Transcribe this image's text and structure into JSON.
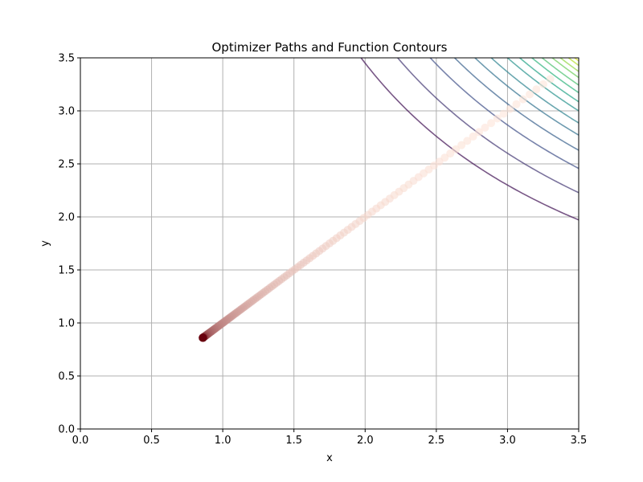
{
  "chart_data": {
    "type": "scatter",
    "title": "Optimizer Paths and Function Contours",
    "xlabel": "x",
    "ylabel": "y",
    "xlim": [
      0.0,
      3.5
    ],
    "ylim": [
      0.0,
      3.5
    ],
    "grid": true,
    "x_ticks": [
      "0.0",
      "0.5",
      "1.0",
      "1.5",
      "2.0",
      "2.5",
      "3.0",
      "3.5"
    ],
    "y_ticks": [
      "0.0",
      "0.5",
      "1.0",
      "1.5",
      "2.0",
      "2.5",
      "3.0",
      "3.5"
    ],
    "contours": {
      "function_form": "level sets of x*y (hyperbolas), upper-right corner only",
      "levels": [
        6.9,
        7.8,
        8.6,
        9.2,
        9.7,
        10.1,
        10.5,
        10.8,
        11.1,
        11.35,
        11.6,
        11.8,
        12.0,
        12.15,
        12.3
      ],
      "colors": [
        "#3e0f52",
        "#433873",
        "#3f4e87",
        "#38608c",
        "#31718e",
        "#2b818e",
        "#25918c",
        "#22a386",
        "#2eb37c",
        "#4ac16d",
        "#6ccd5a",
        "#91d742",
        "#b6de2b",
        "#dbe31f",
        "#fde725"
      ],
      "alpha": 0.7
    },
    "path": {
      "start": [
        3.3,
        3.3
      ],
      "end": [
        0.86,
        0.86
      ],
      "direction": "along y = x from upper-right toward (0.86, 0.86)",
      "points": 160,
      "colormap": "Reds",
      "color_start": "#fee5d9",
      "color_end": "#67000d",
      "alpha": 0.6
    }
  }
}
